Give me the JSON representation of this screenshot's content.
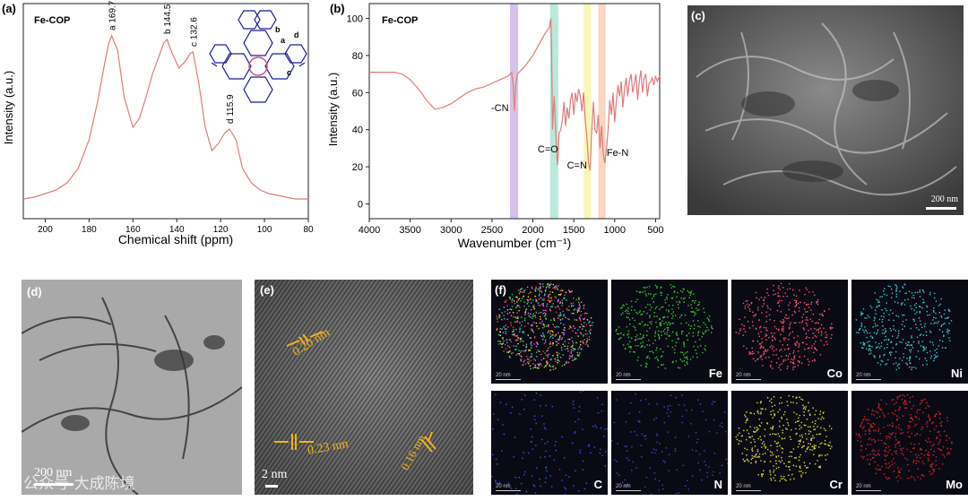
{
  "panels": {
    "a": {
      "label": "(a)",
      "sample": "Fe-COP",
      "chart_data": {
        "type": "line",
        "xlabel": "Chemical shift (ppm)",
        "ylabel": "Intensity (a.u.)",
        "xlim": [
          210,
          80
        ],
        "x_reversed": true,
        "x_ticks": [
          200,
          180,
          160,
          140,
          120,
          100,
          80
        ],
        "y_tick_labels_shown": false,
        "line_color": "#e07b7b",
        "series": [
          {
            "x": [
              210,
              205,
              200,
              195,
              190,
              185,
              180,
              176,
              173,
              171,
              169.7,
              167,
              164,
              160,
              157,
              154,
              151,
              148,
              146,
              144.5,
              142,
              139,
              136,
              134,
              132.6,
              130,
              127,
              124,
              121,
              118,
              115.9,
              113,
              110,
              106,
              102,
              98,
              94,
              90,
              86,
              82,
              80
            ],
            "y": [
              0.05,
              0.06,
              0.08,
              0.1,
              0.14,
              0.22,
              0.38,
              0.6,
              0.8,
              0.92,
              0.96,
              0.88,
              0.62,
              0.45,
              0.5,
              0.62,
              0.75,
              0.85,
              0.92,
              0.94,
              0.86,
              0.78,
              0.82,
              0.86,
              0.87,
              0.7,
              0.45,
              0.32,
              0.36,
              0.42,
              0.44,
              0.38,
              0.22,
              0.14,
              0.1,
              0.08,
              0.07,
              0.06,
              0.05,
              0.05,
              0.05
            ]
          }
        ],
        "annotations": [
          {
            "text": "a 169.7",
            "x": 169.7
          },
          {
            "text": "b 144.5",
            "x": 144.5
          },
          {
            "text": "c 132.6",
            "x": 132.6
          },
          {
            "text": "d 115.9",
            "x": 115.9
          }
        ],
        "structure_labels": [
          "a",
          "b",
          "c",
          "d"
        ]
      }
    },
    "b": {
      "label": "(b)",
      "sample": "Fe-COP",
      "chart_data": {
        "type": "line",
        "xlabel": "Wavenumber (cm⁻¹)",
        "ylabel": "Intensity (a.u.)",
        "xlim": [
          4000,
          450
        ],
        "x_reversed": true,
        "ylim": [
          -8,
          108
        ],
        "x_ticks": [
          4000,
          3500,
          3000,
          2500,
          2000,
          1500,
          1000,
          500
        ],
        "y_ticks": [
          0,
          20,
          40,
          60,
          80,
          100
        ],
        "line_color": "#e07b7b",
        "series": [
          {
            "x": [
              4000,
              3900,
              3800,
              3700,
              3600,
              3500,
              3400,
              3300,
              3200,
              3100,
              3000,
              2900,
              2800,
              2700,
              2600,
              2500,
              2400,
              2300,
              2260,
              2240,
              2225,
              2210,
              2190,
              2100,
              2000,
              1900,
              1850,
              1800,
              1780,
              1770,
              1760,
              1740,
              1720,
              1700,
              1690,
              1680,
              1660,
              1640,
              1620,
              1600,
              1580,
              1560,
              1540,
              1520,
              1500,
              1480,
              1460,
              1440,
              1420,
              1400,
              1380,
              1360,
              1340,
              1320,
              1300,
              1280,
              1260,
              1240,
              1220,
              1200,
              1180,
              1160,
              1140,
              1120,
              1100,
              1080,
              1060,
              1040,
              1020,
              1000,
              980,
              960,
              940,
              920,
              900,
              880,
              860,
              840,
              820,
              800,
              780,
              760,
              740,
              720,
              700,
              680,
              660,
              640,
              620,
              600,
              580,
              560,
              540,
              520,
              500,
              480,
              460,
              450
            ],
            "y": [
              71,
              71,
              71,
              71,
              70,
              67,
              62,
              56,
              51,
              52,
              54,
              57,
              60,
              62,
              63,
              65,
              67,
              69,
              71,
              64,
              50,
              64,
              70,
              74,
              80,
              88,
              92,
              95,
              100,
              80,
              40,
              58,
              38,
              21,
              26,
              38,
              40,
              45,
              55,
              42,
              52,
              46,
              56,
              60,
              48,
              60,
              55,
              62,
              58,
              50,
              60,
              46,
              36,
              22,
              18,
              40,
              55,
              40,
              38,
              48,
              30,
              42,
              27,
              22,
              30,
              40,
              56,
              48,
              60,
              44,
              55,
              64,
              58,
              66,
              52,
              62,
              68,
              58,
              66,
              70,
              60,
              65,
              70,
              56,
              66,
              72,
              60,
              68,
              70,
              58,
              65,
              66,
              68,
              64,
              69,
              66,
              68,
              69
            ]
          }
        ],
        "annotations": [
          {
            "text": "-CN",
            "x": 2225
          },
          {
            "text": "C=O",
            "x": 1700
          },
          {
            "text": "C=N",
            "x": 1320
          },
          {
            "text": "Fe-N",
            "x": 1120
          }
        ],
        "highlight_bands": [
          {
            "from": 2280,
            "to": 2180,
            "color": "#b58fd6"
          },
          {
            "from": 1790,
            "to": 1690,
            "color": "#7fd6c0"
          },
          {
            "from": 1380,
            "to": 1290,
            "color": "#f3f07a"
          },
          {
            "from": 1200,
            "to": 1110,
            "color": "#f2b48a"
          }
        ]
      }
    },
    "c": {
      "label": "(c)",
      "scale": "200 nm"
    },
    "d": {
      "label": "(d)",
      "scale": "200 nm"
    },
    "e": {
      "label": "(e)",
      "scale": "2 nm",
      "spacings": [
        "0.20 nm",
        "0.23 nm",
        "0.16 nm"
      ]
    },
    "f": {
      "label": "(f)",
      "scale_small": "20 nm",
      "maps": [
        {
          "element": "",
          "color": "#ff66ff"
        },
        {
          "element": "Fe",
          "color": "#33cc33"
        },
        {
          "element": "Co",
          "color": "#ff5566"
        },
        {
          "element": "Ni",
          "color": "#33cccc"
        },
        {
          "element": "C",
          "color": "#3355ff"
        },
        {
          "element": "N",
          "color": "#4444dd"
        },
        {
          "element": "Cr",
          "color": "#dddd33"
        },
        {
          "element": "Mo",
          "color": "#dd2222"
        }
      ]
    }
  },
  "watermark": "公众号·大成陈境"
}
